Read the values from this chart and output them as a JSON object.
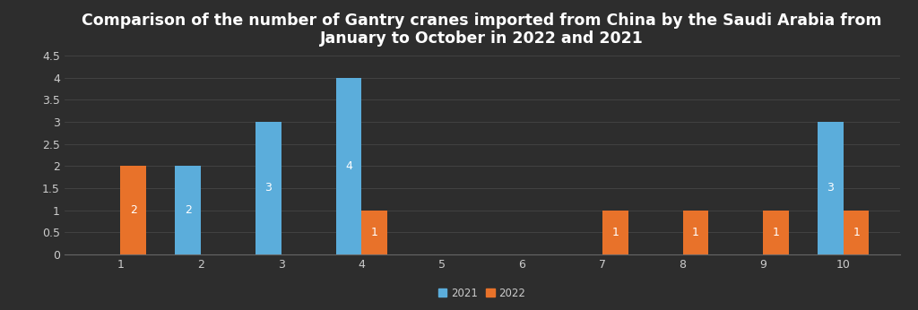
{
  "title": "Comparison of the number of Gantry cranes imported from China by the Saudi Arabia from\nJanuary to October in 2022 and 2021",
  "months": [
    1,
    2,
    3,
    4,
    5,
    6,
    7,
    8,
    9,
    10
  ],
  "values_2021": [
    0,
    2,
    3,
    4,
    0,
    0,
    0,
    0,
    0,
    3
  ],
  "values_2022": [
    2,
    0,
    0,
    1,
    0,
    0,
    1,
    1,
    1,
    1
  ],
  "color_2021": "#5baddb",
  "color_2022": "#e8722a",
  "background_color": "#2d2d2d",
  "axes_background_color": "#2d2d2d",
  "title_color": "#ffffff",
  "tick_color": "#cccccc",
  "label_color": "#cccccc",
  "grid_color": "#4a4a4a",
  "ylim": [
    0,
    4.5
  ],
  "yticks": [
    0,
    0.5,
    1,
    1.5,
    2,
    2.5,
    3,
    3.5,
    4,
    4.5
  ],
  "bar_width": 0.32,
  "title_fontsize": 12.5,
  "tick_fontsize": 9,
  "bar_label_fontsize": 9,
  "legend_fontsize": 8.5
}
